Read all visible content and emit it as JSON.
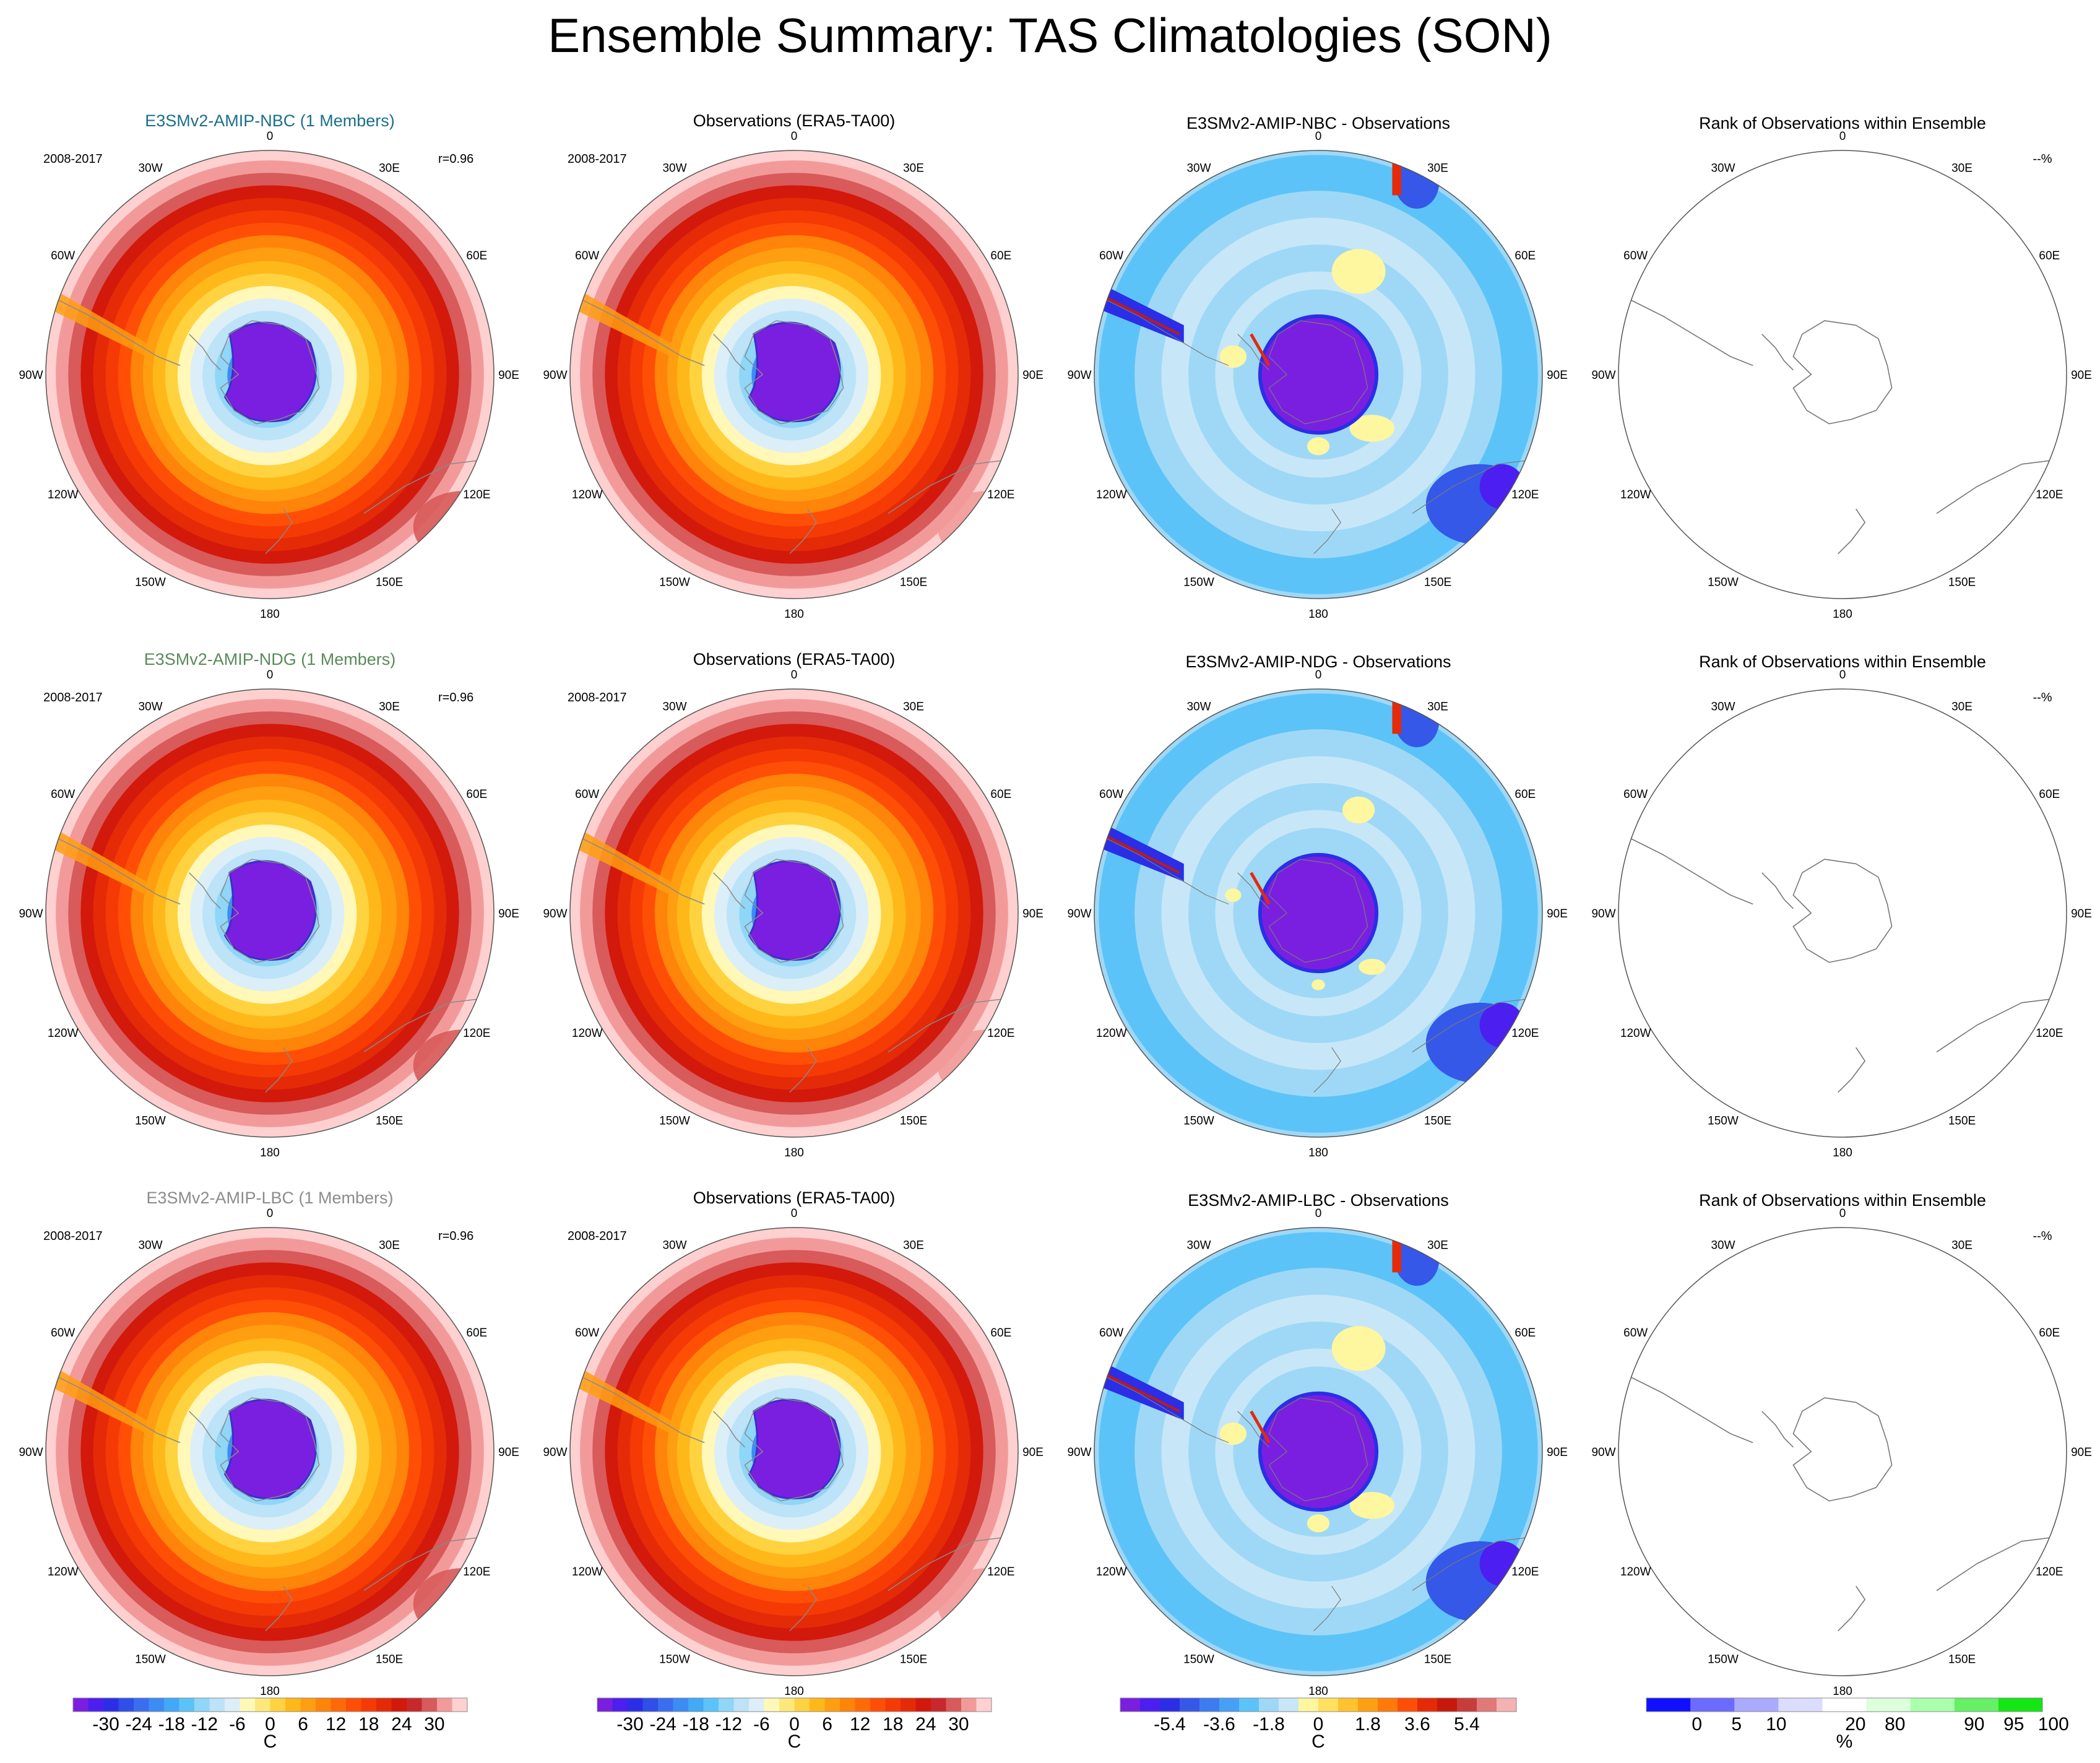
{
  "page": {
    "title": "Ensemble Summary: TAS Climatologies (SON)"
  },
  "rows": [
    {
      "model_title": "E3SMv2-AMIP-NBC (1 Members)",
      "model_title_color": "#1b6f8c",
      "period": "2008-2017",
      "correlation": "r=0.96",
      "obs_title": "Observations (ERA5-TA00)",
      "diff_title": "E3SMv2-AMIP-NBC - Observations",
      "rank_title": "Rank of Observations within Ensemble",
      "rank_pct": "--%"
    },
    {
      "model_title": "E3SMv2-AMIP-NDG (1 Members)",
      "model_title_color": "#5a8a5a",
      "period": "2008-2017",
      "correlation": "r=0.96",
      "obs_title": "Observations (ERA5-TA00)",
      "diff_title": "E3SMv2-AMIP-NDG - Observations",
      "rank_title": "Rank of Observations within Ensemble",
      "rank_pct": "--%"
    },
    {
      "model_title": "E3SMv2-AMIP-LBC (1 Members)",
      "model_title_color": "#8c8c8c",
      "period": "2008-2017",
      "correlation": "r=0.96",
      "obs_title": "Observations (ERA5-TA00)",
      "diff_title": "E3SMv2-AMIP-LBC - Observations",
      "rank_title": "Rank of Observations within Ensemble",
      "rank_pct": "--%"
    }
  ],
  "map_labels": {
    "lon_labels": [
      "0",
      "30E",
      "60E",
      "90E",
      "120E",
      "150E",
      "180",
      "150W",
      "120W",
      "90W",
      "60W",
      "30W"
    ]
  },
  "chart_data": {
    "type": "heatmap",
    "projection": "south polar stereographic",
    "variable": "TAS",
    "season": "SON",
    "colorbars": [
      {
        "id": "climatology",
        "unit": "C",
        "ticks": [
          "-30",
          "-24",
          "-18",
          "-12",
          "-6",
          "0",
          "6",
          "12",
          "18",
          "24",
          "30"
        ],
        "colors": [
          "#7a1fe0",
          "#4c1ef0",
          "#2b2ee6",
          "#2e4fe8",
          "#3a6ef0",
          "#3c8cf5",
          "#42a8f8",
          "#5cc3f8",
          "#8fd6f7",
          "#bce3f7",
          "#dceef8",
          "#fff8b8",
          "#ffe87a",
          "#ffd240",
          "#ffb81a",
          "#ff9e10",
          "#ff840a",
          "#ff6a08",
          "#ff4e06",
          "#f53a06",
          "#e52a08",
          "#d3180c",
          "#c8282a",
          "#d85a5a",
          "#f29a9a",
          "#ffd0d0"
        ]
      },
      {
        "id": "difference",
        "unit": "C",
        "ticks": [
          "-5.4",
          "-3.6",
          "-1.8",
          "0",
          "1.8",
          "3.6",
          "5.4"
        ],
        "colors": [
          "#7a1fe0",
          "#4c1ef0",
          "#2b2ee6",
          "#3558e8",
          "#3d7cf0",
          "#46a0f6",
          "#5cc3f8",
          "#9fd8f6",
          "#c7e7f8",
          "#fff6a0",
          "#ffe060",
          "#ffc230",
          "#ffa014",
          "#ff7a0a",
          "#ff4e06",
          "#e52a08",
          "#c8180c",
          "#c83c3c",
          "#e27878",
          "#f4b2b2"
        ]
      },
      {
        "id": "rank",
        "unit": "%",
        "ticks": [
          "0",
          "5",
          "10",
          "20",
          "80",
          "90",
          "95",
          "100"
        ],
        "colors": [
          "#1010ff",
          "#6b6bff",
          "#aaaaff",
          "#dcdcff",
          "#ffffff",
          "#dcffdc",
          "#aaffaa",
          "#66f066",
          "#14e614"
        ]
      }
    ],
    "panels": [
      {
        "row": 0,
        "col": 0,
        "field": "model climatology",
        "colorbar": "climatology"
      },
      {
        "row": 0,
        "col": 1,
        "field": "observed climatology",
        "colorbar": "climatology"
      },
      {
        "row": 0,
        "col": 2,
        "field": "model minus observations",
        "colorbar": "difference"
      },
      {
        "row": 0,
        "col": 3,
        "field": "rank of observations",
        "colorbar": "rank"
      },
      {
        "row": 1,
        "col": 0,
        "field": "model climatology",
        "colorbar": "climatology"
      },
      {
        "row": 1,
        "col": 1,
        "field": "observed climatology",
        "colorbar": "climatology"
      },
      {
        "row": 1,
        "col": 2,
        "field": "model minus observations",
        "colorbar": "difference"
      },
      {
        "row": 1,
        "col": 3,
        "field": "rank of observations",
        "colorbar": "rank"
      },
      {
        "row": 2,
        "col": 0,
        "field": "model climatology",
        "colorbar": "climatology"
      },
      {
        "row": 2,
        "col": 1,
        "field": "observed climatology",
        "colorbar": "climatology"
      },
      {
        "row": 2,
        "col": 2,
        "field": "model minus observations",
        "colorbar": "difference"
      },
      {
        "row": 2,
        "col": 3,
        "field": "rank of observations",
        "colorbar": "rank"
      }
    ],
    "climatology_rings_C": [
      30,
      27,
      24,
      21,
      18,
      15,
      12,
      9,
      6,
      3,
      0,
      -3,
      -6,
      -9,
      -12,
      -18,
      -24,
      -30
    ],
    "difference_rings_C": [
      -1.2,
      -0.6,
      -1.2,
      -0.6,
      -1.2,
      -0.6,
      -30
    ]
  }
}
